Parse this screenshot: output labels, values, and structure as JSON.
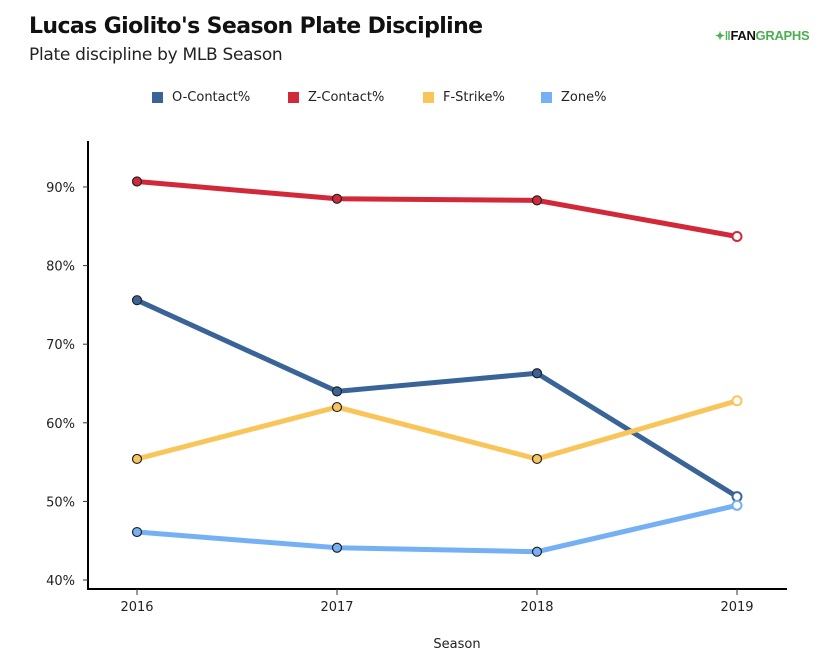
{
  "header": {
    "title": "Lucas Giolito's Season Plate Discipline",
    "subtitle": "Plate discipline by MLB Season",
    "logo_mark": "✦‖",
    "logo_fan": "FAN",
    "logo_graphs": "GRAPHS"
  },
  "chart_data": {
    "type": "line",
    "title": "Lucas Giolito's Season Plate Discipline",
    "subtitle": "Plate discipline by MLB Season",
    "xlabel": "Season",
    "ylabel": "",
    "x": [
      "2016",
      "2017",
      "2018",
      "2019"
    ],
    "ylim": [
      40,
      90
    ],
    "yticks": [
      40,
      50,
      60,
      70,
      80,
      90
    ],
    "ytick_labels": [
      "40%",
      "50%",
      "60%",
      "70%",
      "80%",
      "90%"
    ],
    "grid": false,
    "legend_position": "top",
    "series": [
      {
        "name": "O-Contact%",
        "color": "#3a6497",
        "values": [
          75.6,
          64.0,
          66.3,
          50.6
        ]
      },
      {
        "name": "Z-Contact%",
        "color": "#d1293a",
        "values": [
          90.7,
          88.5,
          88.3,
          83.7
        ]
      },
      {
        "name": "F-Strike%",
        "color": "#f9c55a",
        "values": [
          55.4,
          62.0,
          55.4,
          62.8
        ]
      },
      {
        "name": "Zone%",
        "color": "#75b0f5",
        "values": [
          46.1,
          44.1,
          43.6,
          49.5
        ]
      }
    ],
    "last_point_hollow": true
  }
}
